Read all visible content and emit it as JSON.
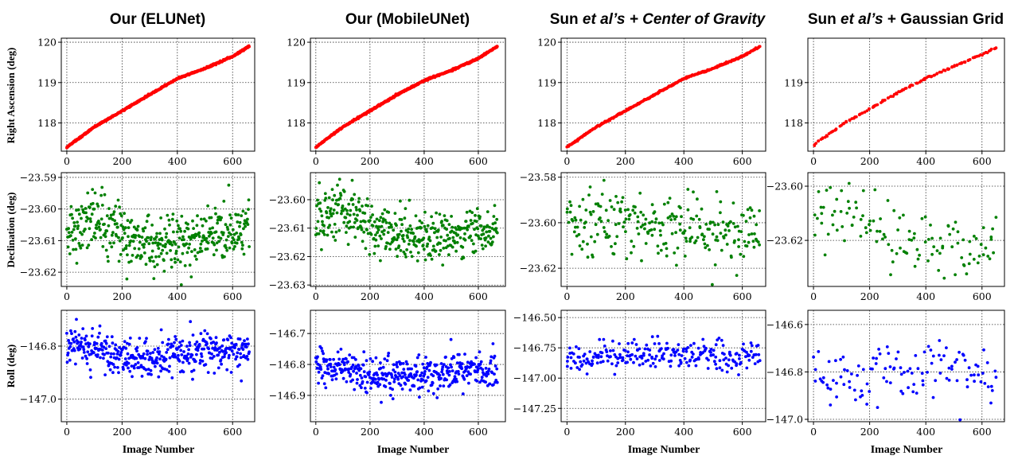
{
  "titles": [
    {
      "prefix": "Our (ELUNet)",
      "italic": "",
      "suffix": ""
    },
    {
      "prefix": "Our (MobileUNet)",
      "italic": "",
      "suffix": ""
    },
    {
      "prefix": "Sun ",
      "italic": "et al’s + Center of Gravity",
      "suffix": ""
    },
    {
      "prefix": "Sun ",
      "italic": "et al’s",
      "suffix": " + Gaussian Grid"
    }
  ],
  "ylabels": [
    "Right Ascension (deg)",
    "Declination (deg)",
    "Roll (deg)"
  ],
  "xlabel": "Image Number",
  "colors": {
    "ra": "#ff0000",
    "dec": "#008000",
    "roll": "#0000ff"
  },
  "chart_data": [
    {
      "type": "scatter",
      "panel": "Our (ELUNet) - Right Ascension",
      "color": "#ff0000",
      "xlim": [
        -20,
        680
      ],
      "ylim": [
        117.3,
        120.1
      ],
      "xticks": [
        0,
        200,
        400,
        600
      ],
      "yticks": [
        118,
        119,
        120
      ],
      "ytick_labels": [
        "118",
        "119",
        "120"
      ],
      "grid": true,
      "trend": {
        "x": [
          0,
          100,
          200,
          300,
          350,
          400,
          500,
          600,
          660
        ],
        "y": [
          117.4,
          117.9,
          118.3,
          118.7,
          118.9,
          119.1,
          119.35,
          119.65,
          119.9
        ]
      },
      "n_points": 620,
      "x_range": [
        0,
        660
      ],
      "noise": 0.01
    },
    {
      "type": "scatter",
      "panel": "Our (ELUNet) - Declination",
      "color": "#008000",
      "xlim": [
        -20,
        680
      ],
      "ylim": [
        -23.6245,
        -23.5885
      ],
      "xticks": [
        0,
        200,
        400,
        600
      ],
      "yticks": [
        -23.62,
        -23.61,
        -23.6,
        -23.59
      ],
      "ytick_labels": [
        "−23.62",
        "−23.61",
        "−23.60",
        "−23.59"
      ],
      "grid": true,
      "trend": {
        "x": [
          0,
          100,
          200,
          300,
          400,
          500,
          600,
          660
        ],
        "y": [
          -23.606,
          -23.603,
          -23.608,
          -23.611,
          -23.611,
          -23.609,
          -23.607,
          -23.607
        ]
      },
      "n_points": 420,
      "x_range": [
        0,
        660
      ],
      "noise": 0.0045
    },
    {
      "type": "scatter",
      "panel": "Our (ELUNet) - Roll",
      "color": "#0000ff",
      "xlim": [
        -20,
        680
      ],
      "ylim": [
        -147.085,
        -146.665
      ],
      "xticks": [
        0,
        200,
        400,
        600
      ],
      "yticks": [
        -146.8,
        -147.0
      ],
      "ytick_labels": [
        "−146.8",
        "−147.0"
      ],
      "grid": true,
      "trend": {
        "x": [
          0,
          100,
          200,
          300,
          400,
          500,
          600,
          660
        ],
        "y": [
          -146.8,
          -146.81,
          -146.84,
          -146.85,
          -146.83,
          -146.82,
          -146.82,
          -146.82
        ]
      },
      "n_points": 420,
      "x_range": [
        0,
        660
      ],
      "noise": 0.035
    },
    {
      "type": "scatter",
      "panel": "Our (MobileUNet) - Right Ascension",
      "color": "#ff0000",
      "xlim": [
        -20,
        700
      ],
      "ylim": [
        117.3,
        120.1
      ],
      "xticks": [
        0,
        200,
        400,
        600
      ],
      "yticks": [
        118,
        119,
        120
      ],
      "ytick_labels": [
        "118",
        "119",
        "120"
      ],
      "grid": true,
      "trend": {
        "x": [
          0,
          100,
          200,
          300,
          400,
          500,
          600,
          670
        ],
        "y": [
          117.4,
          117.9,
          118.3,
          118.7,
          119.05,
          119.3,
          119.6,
          119.9
        ]
      },
      "n_points": 620,
      "x_range": [
        0,
        670
      ],
      "noise": 0.01
    },
    {
      "type": "scatter",
      "panel": "Our (MobileUNet) - Declination",
      "color": "#008000",
      "xlim": [
        -20,
        700
      ],
      "ylim": [
        -23.6305,
        -23.5905
      ],
      "xticks": [
        0,
        200,
        400,
        600
      ],
      "yticks": [
        -23.63,
        -23.62,
        -23.61,
        -23.6
      ],
      "ytick_labels": [
        "−23.63",
        "−23.62",
        "−23.61",
        "−23.60"
      ],
      "grid": true,
      "trend": {
        "x": [
          0,
          100,
          200,
          300,
          400,
          500,
          600,
          670
        ],
        "y": [
          -23.608,
          -23.604,
          -23.609,
          -23.612,
          -23.614,
          -23.613,
          -23.611,
          -23.611
        ]
      },
      "n_points": 420,
      "x_range": [
        0,
        670
      ],
      "noise": 0.0045
    },
    {
      "type": "scatter",
      "panel": "Our (MobileUNet) - Roll",
      "color": "#0000ff",
      "xlim": [
        -20,
        700
      ],
      "ylim": [
        -146.985,
        -146.625
      ],
      "xticks": [
        0,
        200,
        400,
        600
      ],
      "yticks": [
        -146.7,
        -146.8,
        -146.9
      ],
      "ytick_labels": [
        "−146.7",
        "−146.8",
        "−146.9"
      ],
      "grid": true,
      "trend": {
        "x": [
          0,
          100,
          200,
          300,
          400,
          500,
          600,
          670
        ],
        "y": [
          -146.8,
          -146.81,
          -146.84,
          -146.84,
          -146.83,
          -146.82,
          -146.82,
          -146.82
        ]
      },
      "n_points": 420,
      "x_range": [
        0,
        670
      ],
      "noise": 0.03
    },
    {
      "type": "scatter",
      "panel": "Sun et al's + Center of Gravity - Right Ascension",
      "color": "#ff0000",
      "xlim": [
        -20,
        680
      ],
      "ylim": [
        117.3,
        120.1
      ],
      "xticks": [
        0,
        200,
        400,
        600
      ],
      "yticks": [
        118,
        119,
        120
      ],
      "ytick_labels": [
        "118",
        "119",
        "120"
      ],
      "grid": true,
      "trend": {
        "x": [
          0,
          100,
          200,
          300,
          400,
          500,
          600,
          660
        ],
        "y": [
          117.4,
          117.9,
          118.3,
          118.7,
          119.1,
          119.35,
          119.65,
          119.9
        ]
      },
      "n_points": 330,
      "x_range": [
        0,
        660
      ],
      "noise": 0.01
    },
    {
      "type": "scatter",
      "panel": "Sun et al's + Center of Gravity - Declination",
      "color": "#008000",
      "xlim": [
        -20,
        680
      ],
      "ylim": [
        -23.628,
        -23.578
      ],
      "xticks": [
        0,
        200,
        400,
        600
      ],
      "yticks": [
        -23.62,
        -23.6,
        -23.58
      ],
      "ytick_labels": [
        "−23.62",
        "−23.60",
        "−23.58"
      ],
      "grid": true,
      "trend": {
        "x": [
          0,
          100,
          200,
          300,
          400,
          500,
          600,
          660
        ],
        "y": [
          -23.599,
          -23.598,
          -23.6,
          -23.603,
          -23.603,
          -23.604,
          -23.604,
          -23.604
        ]
      },
      "n_points": 250,
      "x_range": [
        0,
        660
      ],
      "noise": 0.007
    },
    {
      "type": "scatter",
      "panel": "Sun et al's + Center of Gravity - Roll",
      "color": "#0000ff",
      "xlim": [
        -20,
        680
      ],
      "ylim": [
        -147.36,
        -146.44
      ],
      "xticks": [
        0,
        200,
        400,
        600
      ],
      "yticks": [
        -146.5,
        -146.75,
        -147.0,
        -147.25
      ],
      "ytick_labels": [
        "−146.50",
        "−146.75",
        "−147.00",
        "−147.25"
      ],
      "grid": true,
      "trend": {
        "x": [
          0,
          100,
          200,
          300,
          400,
          500,
          600,
          660
        ],
        "y": [
          -146.83,
          -146.83,
          -146.8,
          -146.78,
          -146.8,
          -146.82,
          -146.82,
          -146.82
        ]
      },
      "n_points": 250,
      "x_range": [
        0,
        660
      ],
      "noise": 0.06
    },
    {
      "type": "scatter",
      "panel": "Sun et al's + Gaussian Grid - Right Ascension",
      "color": "#ff0000",
      "xlim": [
        -20,
        680
      ],
      "ylim": [
        117.3,
        120.1
      ],
      "xticks": [
        0,
        200,
        400,
        600
      ],
      "yticks": [
        118,
        119
      ],
      "ytick_labels": [
        "118",
        "119"
      ],
      "grid": true,
      "trend": {
        "x": [
          0,
          100,
          200,
          300,
          400,
          500,
          600,
          650
        ],
        "y": [
          117.45,
          117.95,
          118.35,
          118.75,
          119.1,
          119.4,
          119.7,
          119.85
        ]
      },
      "n_points": 130,
      "x_range": [
        0,
        650
      ],
      "noise": 0.01
    },
    {
      "type": "scatter",
      "panel": "Sun et al's + Gaussian Grid - Declination",
      "color": "#008000",
      "xlim": [
        -20,
        680
      ],
      "ylim": [
        -23.637,
        -23.595
      ],
      "xticks": [
        0,
        200,
        400,
        600
      ],
      "yticks": [
        -23.6,
        -23.62
      ],
      "ytick_labels": [
        "−23.60",
        "−23.62"
      ],
      "grid": true,
      "trend": {
        "x": [
          0,
          100,
          200,
          300,
          400,
          500,
          600,
          650
        ],
        "y": [
          -23.612,
          -23.606,
          -23.616,
          -23.62,
          -23.62,
          -23.622,
          -23.622,
          -23.622
        ]
      },
      "n_points": 120,
      "x_range": [
        0,
        650
      ],
      "noise": 0.006
    },
    {
      "type": "scatter",
      "panel": "Sun et al's + Gaussian Grid - Roll",
      "color": "#0000ff",
      "xlim": [
        -20,
        680
      ],
      "ylim": [
        -147.01,
        -146.54
      ],
      "xticks": [
        0,
        200,
        400,
        600
      ],
      "yticks": [
        -146.6,
        -146.8,
        -147.0
      ],
      "ytick_labels": [
        "−146.6",
        "−146.8",
        "−147.0"
      ],
      "grid": true,
      "trend": {
        "x": [
          0,
          100,
          200,
          300,
          400,
          500,
          600,
          650
        ],
        "y": [
          -146.8,
          -146.82,
          -146.83,
          -146.82,
          -146.81,
          -146.8,
          -146.8,
          -146.8
        ]
      },
      "n_points": 120,
      "x_range": [
        0,
        650
      ],
      "noise": 0.06
    }
  ]
}
